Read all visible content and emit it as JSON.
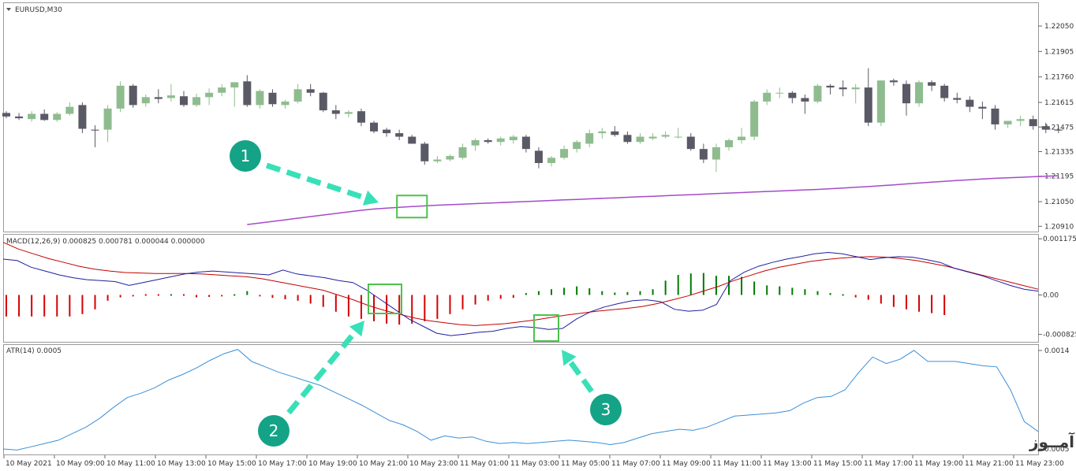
{
  "chart_data": [
    {
      "type": "candlestick",
      "title": "EURUSD,M30",
      "ylim": [
        1.2088,
        1.2218
      ],
      "y_ticks": [
        "1.22050",
        "1.21905",
        "1.21760",
        "1.21615",
        "1.21475",
        "1.21335",
        "1.21195",
        "1.21050",
        "1.20910"
      ],
      "bull_color": "#8fbc8f",
      "bear_color": "#5a5a66",
      "ma_color": "#a64ac9",
      "candles": [
        [
          1.21555,
          1.21565,
          1.21525,
          1.21535
        ],
        [
          1.21535,
          1.21555,
          1.21515,
          1.21525
        ],
        [
          1.2152,
          1.21565,
          1.21505,
          1.2155
        ],
        [
          1.2155,
          1.21575,
          1.2151,
          1.21515
        ],
        [
          1.21515,
          1.2156,
          1.21505,
          1.2155
        ],
        [
          1.2155,
          1.21615,
          1.2154,
          1.2159
        ],
        [
          1.216,
          1.21615,
          1.2144,
          1.21465
        ],
        [
          1.2146,
          1.21485,
          1.2136,
          1.21455
        ],
        [
          1.2146,
          1.216,
          1.2139,
          1.2158
        ],
        [
          1.2158,
          1.21735,
          1.2156,
          1.2171
        ],
        [
          1.2171,
          1.2172,
          1.21585,
          1.216
        ],
        [
          1.2161,
          1.2166,
          1.2159,
          1.21645
        ],
        [
          1.21645,
          1.2169,
          1.2161,
          1.21635
        ],
        [
          1.2164,
          1.2172,
          1.2162,
          1.21655
        ],
        [
          1.2165,
          1.2168,
          1.2159,
          1.216
        ],
        [
          1.216,
          1.21665,
          1.2159,
          1.21645
        ],
        [
          1.21645,
          1.21695,
          1.216,
          1.2167
        ],
        [
          1.2167,
          1.2172,
          1.2165,
          1.217
        ],
        [
          1.217,
          1.2173,
          1.2159,
          1.2173
        ],
        [
          1.21735,
          1.2177,
          1.2159,
          1.216
        ],
        [
          1.216,
          1.2169,
          1.2158,
          1.2168
        ],
        [
          1.2167,
          1.2169,
          1.2159,
          1.21605
        ],
        [
          1.216,
          1.2163,
          1.2158,
          1.2162
        ],
        [
          1.2162,
          1.2172,
          1.2161,
          1.2169
        ],
        [
          1.2169,
          1.2172,
          1.2165,
          1.2167
        ],
        [
          1.2167,
          1.21675,
          1.2156,
          1.2157
        ],
        [
          1.2157,
          1.216,
          1.2152,
          1.2155
        ],
        [
          1.2155,
          1.2157,
          1.2153,
          1.2156
        ],
        [
          1.21565,
          1.2158,
          1.2148,
          1.215
        ],
        [
          1.215,
          1.2151,
          1.2144,
          1.2145
        ],
        [
          1.2146,
          1.2147,
          1.2142,
          1.2144
        ],
        [
          1.2144,
          1.2146,
          1.214,
          1.2142
        ],
        [
          1.2142,
          1.2143,
          1.2138,
          1.2138
        ],
        [
          1.2138,
          1.2139,
          1.2126,
          1.2128
        ],
        [
          1.2128,
          1.2131,
          1.2127,
          1.2129
        ],
        [
          1.2129,
          1.2132,
          1.2128,
          1.2131
        ],
        [
          1.213,
          1.2138,
          1.2129,
          1.2136
        ],
        [
          1.2137,
          1.2141,
          1.2134,
          1.214
        ],
        [
          1.214,
          1.2141,
          1.2138,
          1.2139
        ],
        [
          1.2139,
          1.2142,
          1.2137,
          1.2141
        ],
        [
          1.214,
          1.2143,
          1.2138,
          1.2142
        ],
        [
          1.2142,
          1.2143,
          1.2133,
          1.2135
        ],
        [
          1.2134,
          1.2136,
          1.2124,
          1.2127
        ],
        [
          1.2127,
          1.2131,
          1.2125,
          1.213
        ],
        [
          1.213,
          1.2137,
          1.2129,
          1.2135
        ],
        [
          1.2135,
          1.214,
          1.2133,
          1.2139
        ],
        [
          1.2138,
          1.2146,
          1.2136,
          1.2144
        ],
        [
          1.2144,
          1.2147,
          1.2141,
          1.2145
        ],
        [
          1.2145,
          1.2148,
          1.2142,
          1.2143
        ],
        [
          1.2143,
          1.2145,
          1.2138,
          1.2139
        ],
        [
          1.2139,
          1.2144,
          1.2138,
          1.2142
        ],
        [
          1.2141,
          1.2144,
          1.214,
          1.2142
        ],
        [
          1.2142,
          1.2145,
          1.2141,
          1.2143
        ],
        [
          1.2142,
          1.2147,
          1.2141,
          1.2142
        ],
        [
          1.2142,
          1.2144,
          1.2134,
          1.2135
        ],
        [
          1.2135,
          1.2138,
          1.2127,
          1.2129
        ],
        [
          1.2129,
          1.2138,
          1.2122,
          1.2136
        ],
        [
          1.2136,
          1.2141,
          1.2134,
          1.214
        ],
        [
          1.214,
          1.2147,
          1.2138,
          1.2142
        ],
        [
          1.2142,
          1.2163,
          1.214,
          1.2162
        ],
        [
          1.2162,
          1.2169,
          1.216,
          1.2167
        ],
        [
          1.2167,
          1.217,
          1.2164,
          1.2167
        ],
        [
          1.2167,
          1.2168,
          1.2161,
          1.2164
        ],
        [
          1.2164,
          1.2166,
          1.2155,
          1.2162
        ],
        [
          1.2162,
          1.2172,
          1.2161,
          1.2171
        ],
        [
          1.2171,
          1.2172,
          1.2166,
          1.217
        ],
        [
          1.217,
          1.2174,
          1.2165,
          1.2169
        ],
        [
          1.2169,
          1.2172,
          1.2161,
          1.217
        ],
        [
          1.217,
          1.2181,
          1.2148,
          1.215
        ],
        [
          1.215,
          1.2174,
          1.2148,
          1.2174
        ],
        [
          1.2174,
          1.2175,
          1.2171,
          1.2173
        ],
        [
          1.2172,
          1.2174,
          1.2154,
          1.2161
        ],
        [
          1.2161,
          1.2174,
          1.2159,
          1.2173
        ],
        [
          1.2173,
          1.2174,
          1.2168,
          1.2171
        ],
        [
          1.2171,
          1.2172,
          1.2162,
          1.2164
        ],
        [
          1.2164,
          1.2167,
          1.2161,
          1.2163
        ],
        [
          1.2163,
          1.2165,
          1.2156,
          1.2159
        ],
        [
          1.2159,
          1.2162,
          1.2152,
          1.2158
        ],
        [
          1.2158,
          1.216,
          1.2146,
          1.2149
        ],
        [
          1.2149,
          1.2151,
          1.2147,
          1.2151
        ],
        [
          1.2151,
          1.2154,
          1.2148,
          1.2152
        ],
        [
          1.2152,
          1.2154,
          1.2146,
          1.2148
        ],
        [
          1.2148,
          1.215,
          1.2144,
          1.2146
        ],
        [
          1.2146,
          1.2148,
          1.2144,
          1.21455
        ]
      ],
      "ma": {
        "start_index": 19,
        "values": [
          1.2092,
          1.20929,
          1.20938,
          1.20947,
          1.20956,
          1.20965,
          1.20974,
          1.20983,
          1.20992,
          1.21001,
          1.21008,
          1.21013,
          1.21018,
          1.21022,
          1.21026,
          1.2103,
          1.21033,
          1.21036,
          1.21039,
          1.21042,
          1.21045,
          1.21048,
          1.21051,
          1.21054,
          1.21057,
          1.2106,
          1.21063,
          1.21066,
          1.21069,
          1.21072,
          1.21075,
          1.21078,
          1.21081,
          1.21084,
          1.21087,
          1.2109,
          1.21093,
          1.21096,
          1.21099,
          1.21102,
          1.21105,
          1.21108,
          1.21111,
          1.21114,
          1.21117,
          1.2112,
          1.21124,
          1.21128,
          1.21132,
          1.21136,
          1.21141,
          1.21146,
          1.21151,
          1.21156,
          1.21161,
          1.21166,
          1.21171,
          1.21175,
          1.21179,
          1.21183,
          1.21186,
          1.21189,
          1.21192,
          1.21195,
          1.21198
        ]
      },
      "highlight": {
        "from_index": 31,
        "to_index": 33
      }
    },
    {
      "type": "macd",
      "title": "MACD(12,26,9) 0.000825 0.000781 0.000044 0.000000",
      "ylim": [
        -0.00098,
        0.00126
      ],
      "y_ticks": [
        "0.001175",
        "0.00",
        "-0.000825"
      ],
      "macd_color": "#1f1f9e",
      "signal_color": "#c40000",
      "hist_pos_color": "#007a00",
      "hist_neg_color": "#d40000",
      "main_values": [
        0.00075,
        0.00072,
        0.00058,
        0.0005,
        0.00042,
        0.00036,
        0.00032,
        0.0003,
        0.00028,
        0.0002,
        0.00026,
        0.00032,
        0.00038,
        0.00044,
        0.00048,
        0.0005,
        0.00048,
        0.00046,
        0.00044,
        0.00042,
        0.00052,
        0.00044,
        0.0004,
        0.00036,
        0.0003,
        0.00026,
        0.0001,
        -0.0001,
        -0.0003,
        -0.0005,
        -0.00065,
        -0.0008,
        -0.00085,
        -0.00082,
        -0.00078,
        -0.00076,
        -0.0007,
        -0.00066,
        -0.00068,
        -0.00072,
        -0.0007,
        -0.0005,
        -0.00035,
        -0.00025,
        -0.00018,
        -0.00012,
        -0.0001,
        -0.00014,
        -0.0003,
        -0.00034,
        -0.00032,
        -0.0002,
        0.0003,
        0.00048,
        0.0006,
        0.00068,
        0.00075,
        0.0008,
        0.00086,
        0.00089,
        0.00086,
        0.0008,
        0.00074,
        0.00078,
        0.0008,
        0.00079,
        0.00074,
        0.00068,
        0.00056,
        0.00048,
        0.0004,
        0.0003,
        0.0002,
        0.00012,
        8e-05
      ],
      "signal_values": [
        0.0011,
        0.00096,
        0.00086,
        0.00076,
        0.00068,
        0.0006,
        0.00054,
        0.0005,
        0.00047,
        0.00046,
        0.00045,
        0.00045,
        0.00045,
        0.00044,
        0.00042,
        0.0004,
        0.00038,
        0.00034,
        0.00028,
        0.00022,
        0.00016,
        0.0001,
        0.0,
        -0.0001,
        -0.00022,
        -0.00032,
        -0.0004,
        -0.00048,
        -0.00054,
        -0.00058,
        -0.00062,
        -0.00064,
        -0.00062,
        -0.0006,
        -0.00056,
        -0.00052,
        -0.00047,
        -0.00042,
        -0.00038,
        -0.00034,
        -0.00031,
        -0.00028,
        -0.00024,
        -0.00018,
        -0.0001,
        -2e-05,
        8e-05,
        0.00018,
        0.0003,
        0.0004,
        0.0005,
        0.00058,
        0.00064,
        0.0007,
        0.00074,
        0.00077,
        0.00079,
        0.0008,
        0.00079,
        0.00076,
        0.00072,
        0.00066,
        0.0006,
        0.00052,
        0.00044,
        0.00036,
        0.00028,
        0.0002,
        0.00012
      ],
      "histogram": [
        -0.00045,
        -0.00045,
        -0.00045,
        -0.00045,
        -0.00045,
        -0.00045,
        -0.0004,
        -0.0003,
        -0.00012,
        -5e-05,
        -3e-05,
        -2e-05,
        -1e-05,
        0.0,
        -1e-05,
        -5e-05,
        -4e-05,
        -3e-05,
        2e-05,
        8e-05,
        -3e-05,
        -6e-05,
        -9e-05,
        -0.00012,
        -0.00018,
        -0.00025,
        -0.00035,
        -0.00045,
        -0.0005,
        -0.00055,
        -0.0006,
        -0.00062,
        -0.0006,
        -0.00055,
        -0.0005,
        -0.0004,
        -0.0003,
        -0.0002,
        -0.00012,
        -8e-05,
        -6e-05,
        4e-05,
        8e-05,
        0.00012,
        0.00015,
        0.00018,
        0.00014,
        8e-05,
        5e-05,
        6e-05,
        8e-05,
        0.00012,
        0.0003,
        0.00042,
        0.00045,
        0.00046,
        0.0004,
        0.0004,
        0.00038,
        0.00028,
        0.0002,
        0.00018,
        0.00015,
        0.00012,
        8e-05,
        4e-05,
        0.0,
        -5e-05,
        -0.0001,
        -0.00018,
        -0.00025,
        -0.0003,
        -0.00035,
        -0.00038,
        -0.00042
      ]
    },
    {
      "type": "line",
      "title": "ATR(14) 0.0005",
      "ylim": [
        0.00045,
        0.00145
      ],
      "y_ticks": [
        "0.0014",
        "0.0005"
      ],
      "line_color": "#3a8fd8",
      "values": [
        0.0005,
        0.00049,
        0.00052,
        0.00055,
        0.00058,
        0.00064,
        0.0007,
        0.00078,
        0.00088,
        0.00097,
        0.00101,
        0.00106,
        0.00113,
        0.00118,
        0.00124,
        0.00131,
        0.00137,
        0.00141,
        0.0013,
        0.00125,
        0.0012,
        0.00116,
        0.00112,
        0.00108,
        0.00102,
        0.00096,
        0.0009,
        0.00083,
        0.00076,
        0.00072,
        0.00066,
        0.00058,
        0.00062,
        0.0006,
        0.00061,
        0.00057,
        0.00055,
        0.00056,
        0.00055,
        0.00056,
        0.00057,
        0.00058,
        0.00057,
        0.00056,
        0.00054,
        0.00056,
        0.0006,
        0.00064,
        0.00066,
        0.00068,
        0.00067,
        0.0007,
        0.00075,
        0.0008,
        0.00081,
        0.00082,
        0.00083,
        0.00085,
        0.00092,
        0.00097,
        0.00098,
        0.00104,
        0.0012,
        0.00134,
        0.00128,
        0.00132,
        0.0014,
        0.0013,
        0.0013,
        0.0013,
        0.00128,
        0.00126,
        0.00125,
        0.00104,
        0.00075,
        0.00066
      ]
    }
  ],
  "x_labels": [
    "10 May 2021",
    "10 May 09:00",
    "10 May 11:00",
    "10 May 13:00",
    "10 May 15:00",
    "10 May 17:00",
    "10 May 19:00",
    "10 May 21:00",
    "10 May 23:00",
    "11 May 01:00",
    "11 May 03:00",
    "11 May 05:00",
    "11 May 07:00",
    "11 May 09:00",
    "11 May 11:00",
    "11 May 13:00",
    "11 May 15:00",
    "11 May 17:00",
    "11 May 19:00",
    "11 May 21:00",
    "11 May 23:00"
  ],
  "callouts": [
    {
      "label": "1",
      "color": "#14a386",
      "arrow_color": "#38e0b8"
    },
    {
      "label": "2",
      "color": "#14a386",
      "arrow_color": "#38e0b8"
    },
    {
      "label": "3",
      "color": "#14a386",
      "arrow_color": "#38e0b8"
    }
  ],
  "highlight_color": "#4cc24c",
  "watermark": "انتشار در وبسایت ســود آمــوز"
}
